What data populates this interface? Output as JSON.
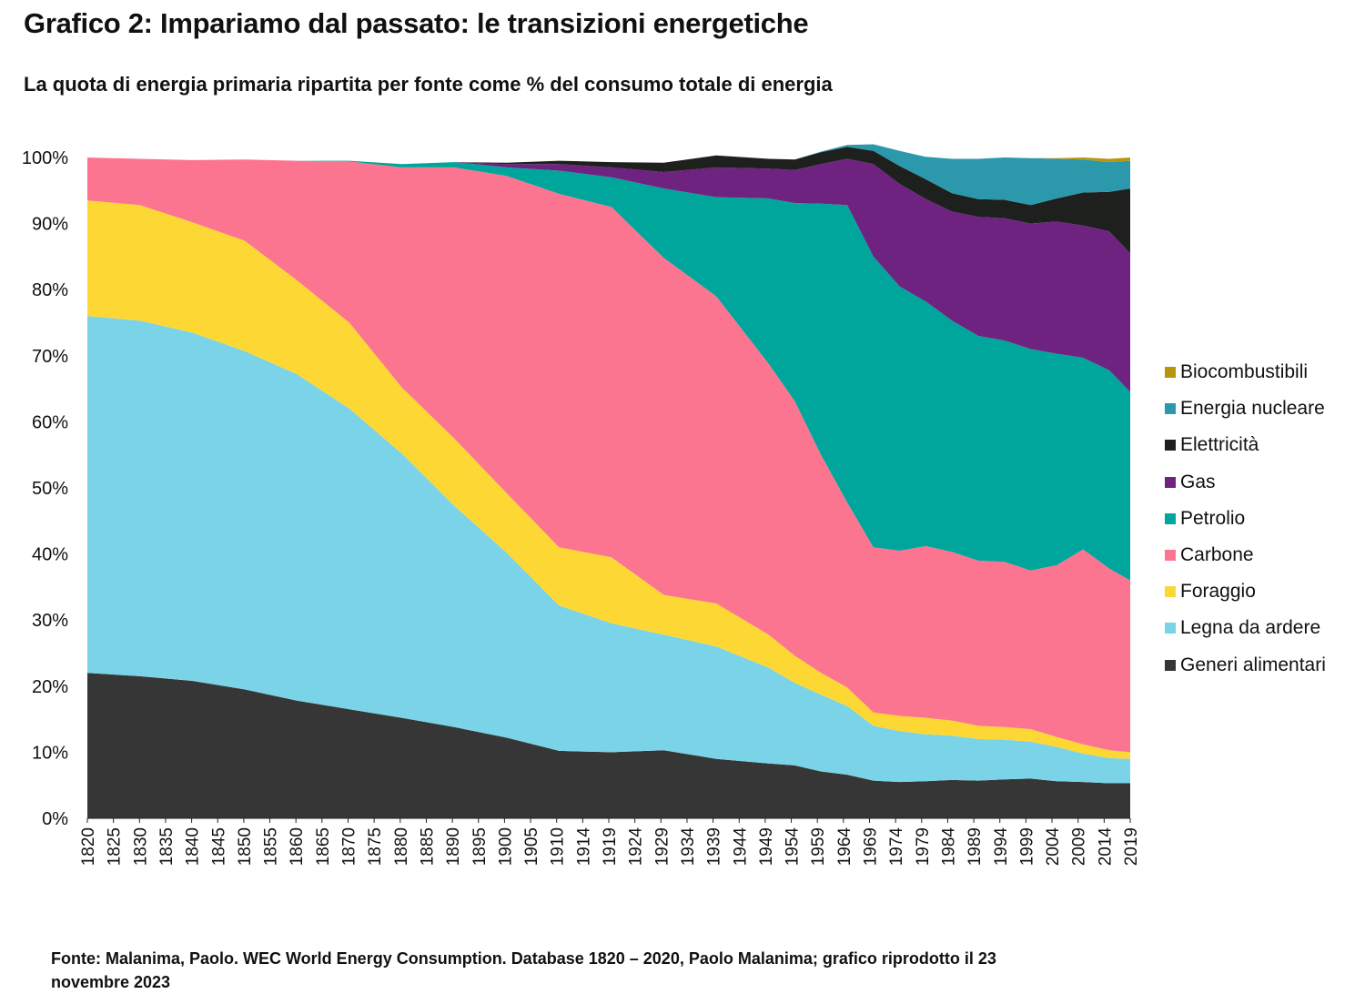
{
  "title": "Grafico 2: Impariamo dal passato: le transizioni energetiche",
  "subtitle": "La quota di energia primaria ripartita per fonte come % del consumo totale di energia",
  "source": "Fonte: Malanima, Paolo. WEC World Energy Consumption. Database 1820 – 2020, Paolo Malanima; grafico riprodotto il 23 novembre 2023",
  "chart_data": {
    "type": "area",
    "stacked": true,
    "title": "Grafico 2: Impariamo dal passato: le transizioni energetiche",
    "subtitle": "La quota di energia primaria ripartita per fonte come % del consumo totale di energia",
    "xlabel": "",
    "ylabel": "",
    "ylim": [
      0,
      100
    ],
    "y_ticks": [
      "0%",
      "10%",
      "20%",
      "30%",
      "40%",
      "50%",
      "60%",
      "70%",
      "80%",
      "90%",
      "100%"
    ],
    "x_ticks": [
      "1820",
      "1825",
      "1830",
      "1835",
      "1840",
      "1845",
      "1850",
      "1855",
      "1860",
      "1865",
      "1870",
      "1875",
      "1880",
      "1885",
      "1890",
      "1895",
      "1900",
      "1905",
      "1910",
      "1914",
      "1919",
      "1924",
      "1929",
      "1934",
      "1939",
      "1944",
      "1949",
      "1954",
      "1959",
      "1964",
      "1969",
      "1974",
      "1979",
      "1984",
      "1989",
      "1994",
      "1999",
      "2004",
      "2009",
      "2014",
      "2019"
    ],
    "grid": false,
    "legend_position": "right",
    "x": [
      1820,
      1830,
      1840,
      1850,
      1860,
      1870,
      1880,
      1890,
      1900,
      1910,
      1920,
      1930,
      1940,
      1950,
      1955,
      1960,
      1965,
      1970,
      1975,
      1980,
      1985,
      1990,
      1995,
      2000,
      2005,
      2010,
      2015,
      2019
    ],
    "series": [
      {
        "name": "Generi alimentari",
        "color": "#363636",
        "values": [
          22,
          21.5,
          20.8,
          19.5,
          17.8,
          16.5,
          15.2,
          13.8,
          12.2,
          10.2,
          10.0,
          10.3,
          9.0,
          8.3,
          8.0,
          7.1,
          6.6,
          5.7,
          5.5,
          5.6,
          5.8,
          5.7,
          5.9,
          6.0,
          5.6,
          5.5,
          5.3,
          5.3
        ]
      },
      {
        "name": "Legna da ardere",
        "color": "#7ad3e6",
        "values": [
          54,
          53.8,
          52.7,
          51.2,
          49.4,
          45.5,
          40.0,
          33.5,
          28.0,
          22.0,
          19.5,
          17.5,
          17.0,
          14.5,
          12.5,
          11.6,
          10.4,
          8.3,
          7.7,
          7.1,
          6.7,
          6.3,
          6.0,
          5.6,
          5.2,
          4.3,
          3.8,
          3.7
        ]
      },
      {
        "name": "Foraggio",
        "color": "#fdd835",
        "values": [
          17.5,
          17.5,
          16.7,
          16.7,
          14.2,
          13.0,
          10.0,
          10.2,
          9.0,
          8.8,
          10.0,
          6.0,
          6.5,
          5.0,
          4.1,
          3.3,
          2.8,
          2.0,
          2.3,
          2.5,
          2.3,
          2.0,
          1.9,
          1.9,
          1.5,
          1.4,
          1.2,
          1.0
        ]
      },
      {
        "name": "Carbone",
        "color": "#fc7590",
        "values": [
          6.5,
          7.0,
          9.4,
          12.3,
          18.1,
          24.4,
          33.3,
          41.0,
          48.0,
          53.5,
          53.0,
          51.0,
          46.5,
          41.0,
          38.5,
          33.0,
          28.0,
          25.0,
          25.0,
          26.0,
          25.5,
          25.0,
          25.0,
          24.0,
          26.0,
          29.5,
          27.5,
          26.0
        ]
      },
      {
        "name": "Petrolio",
        "color": "#00a69b",
        "values": [
          0,
          0,
          0,
          0,
          0,
          0.1,
          0.5,
          0.8,
          1.3,
          3.5,
          4.5,
          10.5,
          15.0,
          25.0,
          30.0,
          38.0,
          45.0,
          44.0,
          40.0,
          37.0,
          35.0,
          34.0,
          33.5,
          33.5,
          32.0,
          29.0,
          30.0,
          28.5
        ]
      },
      {
        "name": "Gas",
        "color": "#6e2380",
        "values": [
          0,
          0,
          0,
          0,
          0,
          0,
          0,
          0,
          0.5,
          1.0,
          1.5,
          2.5,
          4.5,
          4.5,
          5.0,
          6.0,
          7.0,
          14.0,
          15.5,
          15.5,
          16.5,
          18.0,
          18.5,
          19.0,
          20.0,
          20.0,
          21.0,
          21.0
        ]
      },
      {
        "name": "Elettricità",
        "color": "#1e201e",
        "values": [
          0,
          0,
          0,
          0,
          0,
          0,
          0,
          0,
          0.2,
          0.5,
          0.8,
          1.4,
          1.8,
          1.5,
          1.6,
          1.8,
          1.8,
          2.0,
          2.7,
          3.0,
          2.8,
          2.7,
          2.8,
          2.8,
          3.5,
          5.0,
          6.0,
          9.8
        ]
      },
      {
        "name": "Energia nucleare",
        "color": "#2b98ab",
        "values": [
          0,
          0,
          0,
          0,
          0,
          0,
          0,
          0,
          0,
          0,
          0,
          0,
          0,
          0,
          0,
          0.1,
          0.3,
          1.0,
          2.3,
          3.4,
          5.2,
          6.1,
          6.4,
          7.1,
          6.0,
          5.0,
          4.5,
          4.2
        ]
      },
      {
        "name": "Biocombustibili",
        "color": "#b8960c",
        "values": [
          0,
          0,
          0,
          0,
          0,
          0,
          0,
          0,
          0,
          0,
          0,
          0,
          0,
          0,
          0,
          0,
          0,
          0,
          0,
          0,
          0,
          0,
          0,
          0,
          0.1,
          0.3,
          0.5,
          0.5
        ]
      }
    ]
  }
}
